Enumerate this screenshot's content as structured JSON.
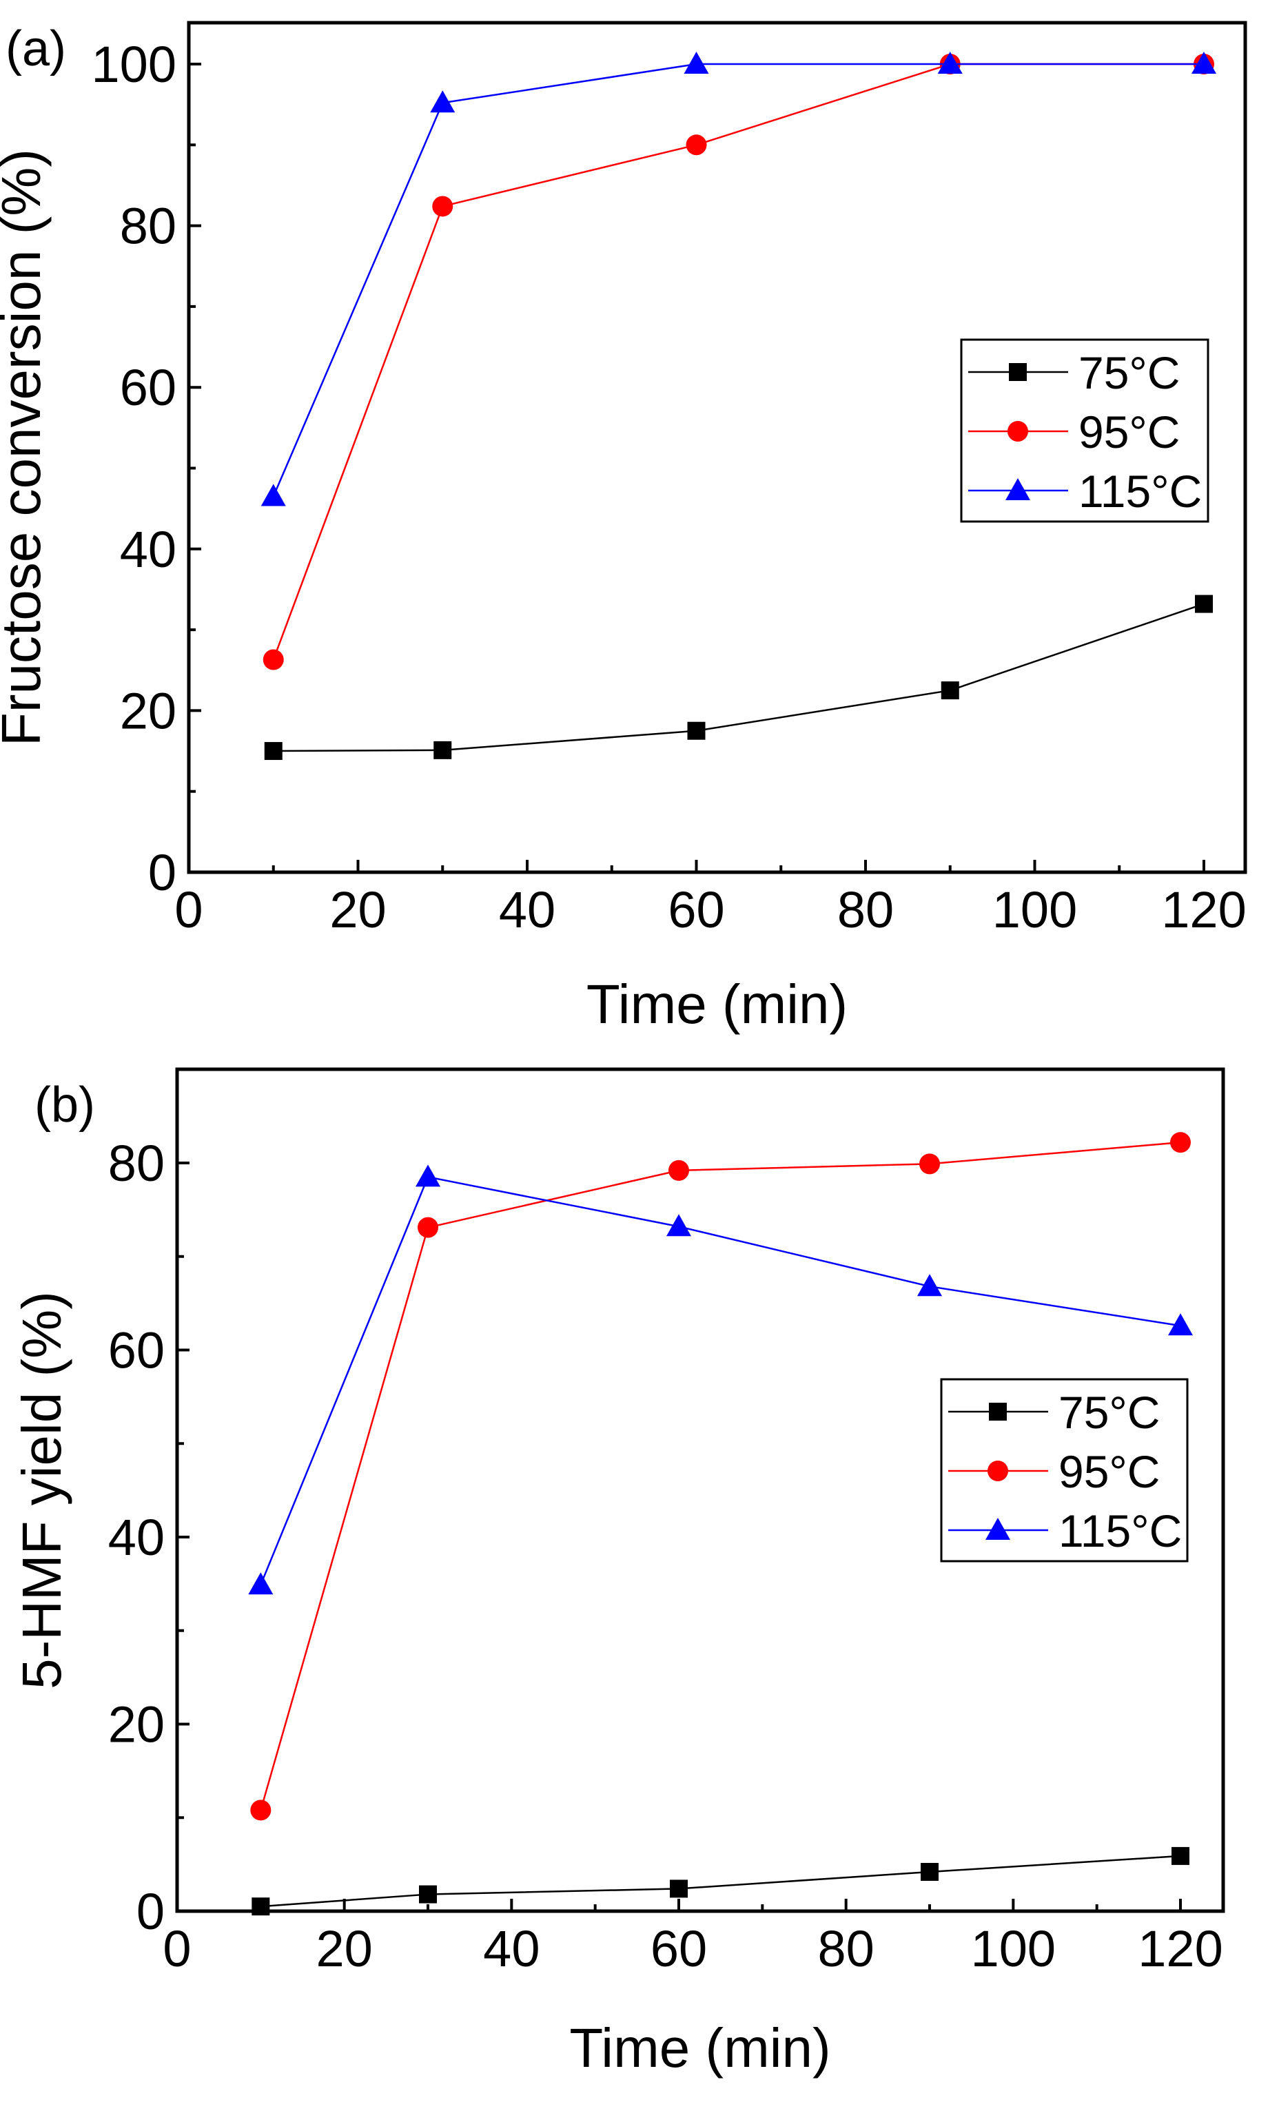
{
  "chart_data": [
    {
      "type": "line",
      "panel_label": "(a)",
      "xlabel": "Time (min)",
      "ylabel": "Fructose conversion (%)",
      "xlim": [
        0,
        125
      ],
      "ylim": [
        0,
        105
      ],
      "xticks": [
        0,
        20,
        40,
        60,
        80,
        100,
        120
      ],
      "yticks": [
        0,
        20,
        40,
        60,
        80,
        100
      ],
      "legend_position": "right-middle",
      "x": [
        10,
        30,
        60,
        90,
        120
      ],
      "series": [
        {
          "name": "75°C",
          "color": "#000000",
          "marker": "square",
          "values": [
            15.0,
            15.1,
            17.5,
            22.5,
            33.2
          ]
        },
        {
          "name": "95°C",
          "color": "#ff0000",
          "marker": "circle",
          "values": [
            26.3,
            82.4,
            90.0,
            100.0,
            100.0
          ]
        },
        {
          "name": "115°C",
          "color": "#0000ff",
          "marker": "triangle",
          "values": [
            46.5,
            95.2,
            100.0,
            100.0,
            100.0
          ]
        }
      ]
    },
    {
      "type": "line",
      "panel_label": "(b)",
      "xlabel": "Time (min)",
      "ylabel": "5-HMF yield (%)",
      "xlim": [
        0,
        125
      ],
      "ylim": [
        0,
        90
      ],
      "xticks": [
        0,
        20,
        40,
        60,
        80,
        100,
        120
      ],
      "yticks": [
        0,
        20,
        40,
        60,
        80
      ],
      "legend_position": "right-middle",
      "x": [
        10,
        30,
        60,
        90,
        120
      ],
      "series": [
        {
          "name": "75°C",
          "color": "#000000",
          "marker": "square",
          "values": [
            0.5,
            1.8,
            2.4,
            4.2,
            5.9
          ]
        },
        {
          "name": "95°C",
          "color": "#ff0000",
          "marker": "circle",
          "values": [
            10.8,
            73.1,
            79.2,
            79.9,
            82.2
          ]
        },
        {
          "name": "115°C",
          "color": "#0000ff",
          "marker": "triangle",
          "values": [
            34.9,
            78.5,
            73.2,
            66.8,
            62.6
          ]
        }
      ]
    }
  ]
}
